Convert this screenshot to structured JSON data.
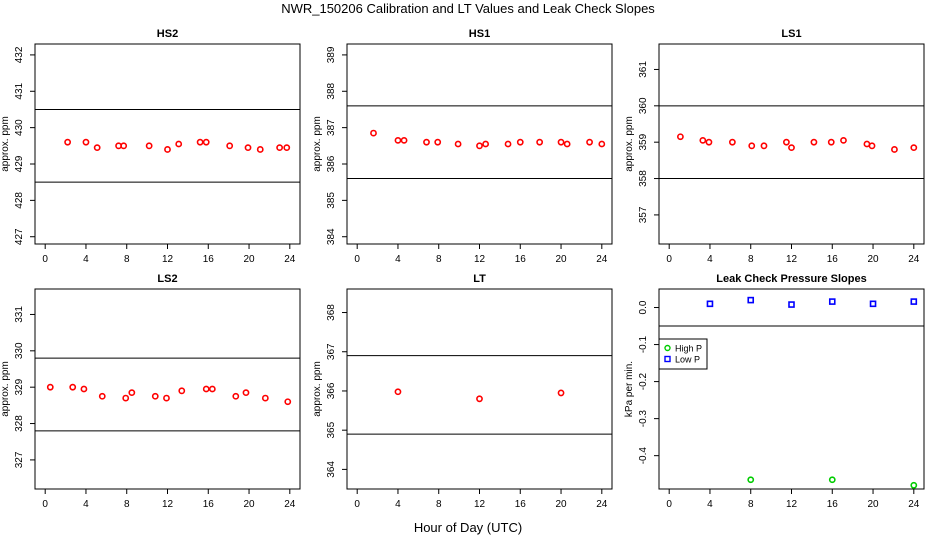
{
  "page": {
    "title": "NWR_150206  Calibration and LT Values and Leak Check Slopes",
    "xlabel": "Hour of Day (UTC)"
  },
  "colors": {
    "points": "#ff0000",
    "high_p": "#00cc00",
    "low_p": "#0000ff",
    "reference_lines": "#000000"
  },
  "chart_data": [
    {
      "type": "scatter",
      "title": "HS2",
      "ylabel": "approx. ppm",
      "xlim": [
        -1,
        25
      ],
      "ylim": [
        426.8,
        432.3
      ],
      "xticks": [
        "0",
        "4",
        "8",
        "12",
        "16",
        "20",
        "24"
      ],
      "yticks": [
        "427",
        "428",
        "429",
        "430",
        "431",
        "432"
      ],
      "reference_lines": [
        430.5,
        428.5
      ],
      "series": [
        {
          "color": "#ff0000",
          "x": [
            2.2,
            4.0,
            5.1,
            7.2,
            7.7,
            10.2,
            12.0,
            13.1,
            15.2,
            15.8,
            18.1,
            19.9,
            21.1,
            23.0,
            23.7
          ],
          "y": [
            429.6,
            429.6,
            429.45,
            429.5,
            429.5,
            429.5,
            429.4,
            429.55,
            429.6,
            429.6,
            429.5,
            429.45,
            429.4,
            429.45,
            429.45
          ]
        }
      ]
    },
    {
      "type": "scatter",
      "title": "HS1",
      "ylabel": "approx. ppm",
      "xlim": [
        -1,
        25
      ],
      "ylim": [
        383.8,
        389.3
      ],
      "xticks": [
        "0",
        "4",
        "8",
        "12",
        "16",
        "20",
        "24"
      ],
      "yticks": [
        "384",
        "385",
        "386",
        "387",
        "388",
        "389"
      ],
      "reference_lines": [
        387.6,
        385.6
      ],
      "series": [
        {
          "color": "#ff0000",
          "x": [
            1.6,
            4.0,
            4.6,
            6.8,
            7.9,
            9.9,
            12.0,
            12.6,
            14.8,
            16.0,
            17.9,
            20.0,
            20.6,
            22.8,
            24.0
          ],
          "y": [
            386.85,
            386.65,
            386.65,
            386.6,
            386.6,
            386.55,
            386.5,
            386.55,
            386.55,
            386.6,
            386.6,
            386.6,
            386.55,
            386.6,
            386.55
          ]
        }
      ]
    },
    {
      "type": "scatter",
      "title": "LS1",
      "ylabel": "approx. ppm",
      "xlim": [
        -1,
        25
      ],
      "ylim": [
        356.2,
        361.7
      ],
      "xticks": [
        "0",
        "4",
        "8",
        "12",
        "16",
        "20",
        "24"
      ],
      "yticks": [
        "357",
        "358",
        "359",
        "360",
        "361"
      ],
      "reference_lines": [
        360.0,
        358.0
      ],
      "series": [
        {
          "color": "#ff0000",
          "x": [
            1.1,
            3.3,
            3.9,
            6.2,
            8.1,
            9.3,
            11.5,
            12.0,
            14.2,
            15.9,
            17.1,
            19.4,
            19.9,
            22.1,
            24.0
          ],
          "y": [
            359.15,
            359.05,
            359.0,
            359.0,
            358.9,
            358.9,
            359.0,
            358.85,
            359.0,
            359.0,
            359.05,
            358.95,
            358.9,
            358.8,
            358.85
          ]
        }
      ]
    },
    {
      "type": "scatter",
      "title": "LS2",
      "ylabel": "approx. ppm",
      "xlim": [
        -1,
        25
      ],
      "ylim": [
        326.2,
        331.7
      ],
      "xticks": [
        "0",
        "4",
        "8",
        "12",
        "16",
        "20",
        "24"
      ],
      "yticks": [
        "327",
        "328",
        "329",
        "330",
        "331"
      ],
      "reference_lines": [
        329.8,
        327.8
      ],
      "series": [
        {
          "color": "#ff0000",
          "x": [
            0.5,
            2.7,
            3.8,
            5.6,
            7.9,
            8.5,
            10.8,
            11.9,
            13.4,
            15.8,
            16.4,
            18.7,
            19.7,
            21.6,
            23.8
          ],
          "y": [
            329.0,
            329.0,
            328.95,
            328.75,
            328.7,
            328.85,
            328.75,
            328.7,
            328.9,
            328.95,
            328.95,
            328.75,
            328.85,
            328.7,
            328.6
          ]
        }
      ]
    },
    {
      "type": "scatter",
      "title": "LT",
      "ylabel": "approx. ppm",
      "xlim": [
        -1,
        25
      ],
      "ylim": [
        363.5,
        368.6
      ],
      "xticks": [
        "0",
        "4",
        "8",
        "12",
        "16",
        "20",
        "24"
      ],
      "yticks": [
        "364",
        "365",
        "366",
        "367",
        "368"
      ],
      "reference_lines": [
        366.9,
        364.9
      ],
      "series": [
        {
          "color": "#ff0000",
          "x": [
            4.0,
            12.0,
            20.0
          ],
          "y": [
            365.98,
            365.8,
            365.95
          ]
        }
      ]
    },
    {
      "type": "scatter",
      "title": "Leak Check Pressure Slopes",
      "ylabel": "kPa per min.",
      "xlim": [
        -1,
        25
      ],
      "ylim": [
        -0.49,
        0.05
      ],
      "xticks": [
        "0",
        "4",
        "8",
        "12",
        "16",
        "20",
        "24"
      ],
      "yticks": [
        "0.0",
        "-0.1",
        "-0.2",
        "-0.3",
        "-0.4"
      ],
      "reference_lines": [
        0.05,
        -0.05
      ],
      "legend": "top-left",
      "series": [
        {
          "name": "High P",
          "color": "#00cc00",
          "x": [
            8.0,
            16.0,
            24.0
          ],
          "y": [
            -0.465,
            -0.465,
            -0.48
          ]
        },
        {
          "name": "Low P",
          "color": "#0000ff",
          "x": [
            4.0,
            8.0,
            12.0,
            16.0,
            20.0,
            24.0
          ],
          "y": [
            0.01,
            0.02,
            0.008,
            0.016,
            0.01,
            0.016
          ]
        }
      ]
    }
  ]
}
